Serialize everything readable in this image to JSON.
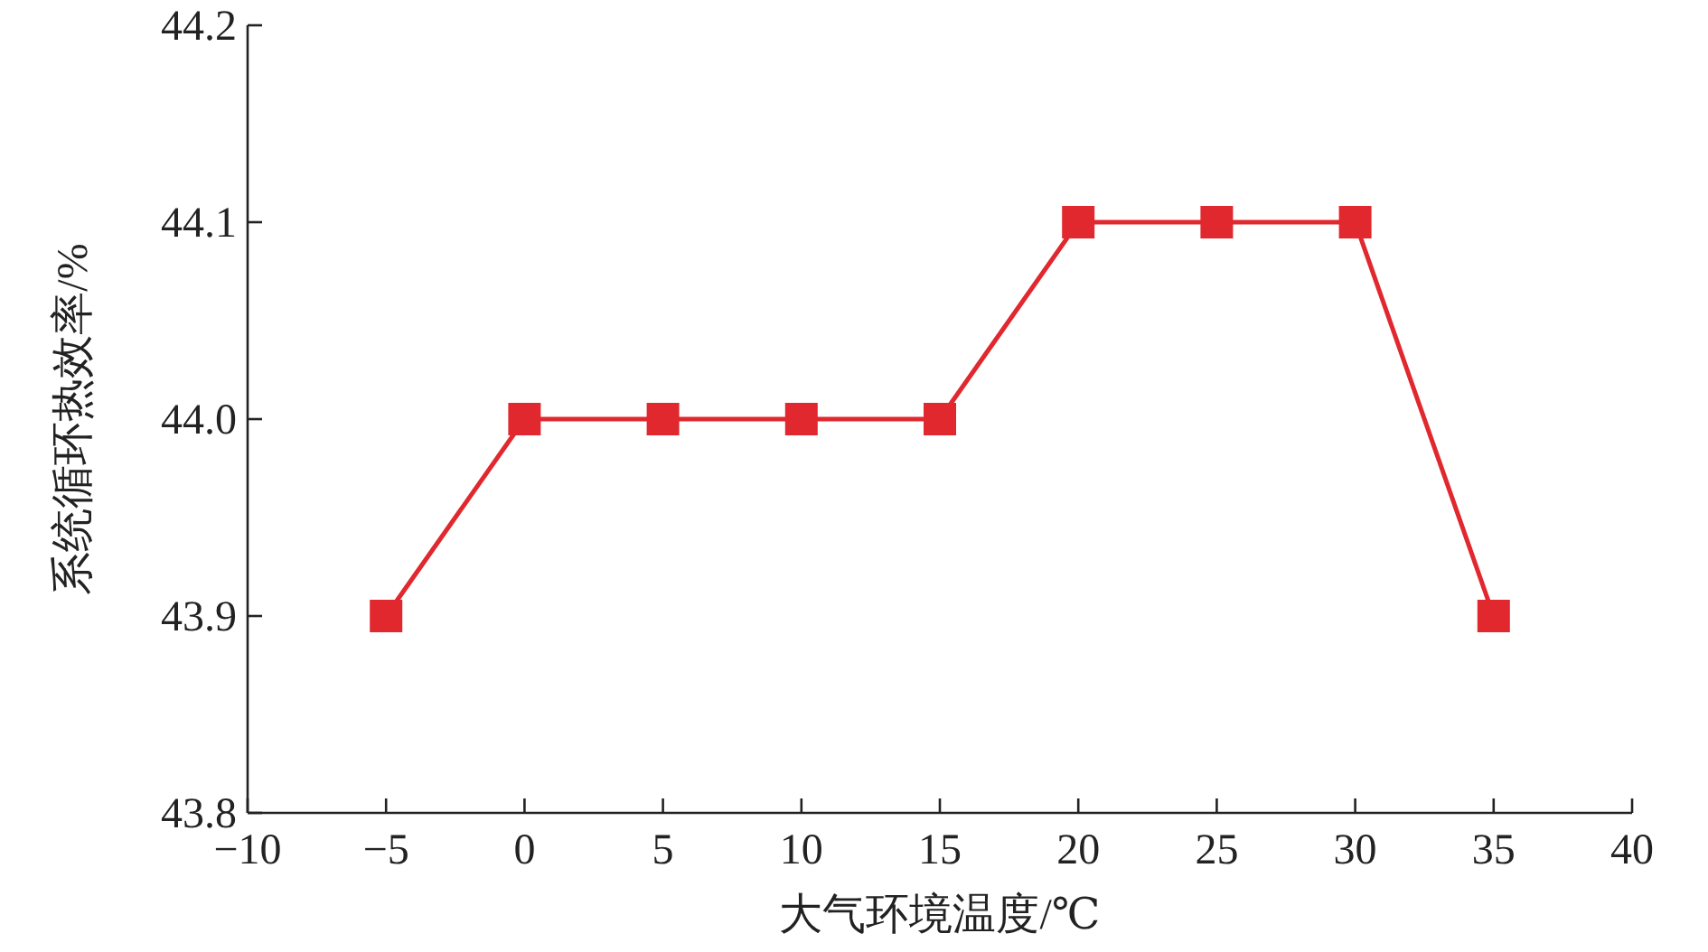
{
  "chart_data": {
    "type": "line",
    "xlabel": "大气环境温度/℃",
    "ylabel": "系统循环热效率/%",
    "x": [
      -5,
      0,
      5,
      10,
      15,
      20,
      25,
      30,
      35
    ],
    "series": [
      {
        "color": "#e0282e",
        "values": [
          43.9,
          44.0,
          44.0,
          44.0,
          44.0,
          44.1,
          44.1,
          44.1,
          43.9
        ]
      }
    ],
    "xlim": [
      -10,
      40
    ],
    "xticks": [
      {
        "value": -10,
        "label": "−10"
      },
      {
        "value": -5,
        "label": "−5"
      },
      0,
      5,
      10,
      15,
      20,
      25,
      30,
      35,
      40
    ],
    "ylim": [
      43.8,
      44.2
    ],
    "yticks": [
      {
        "value": 43.8,
        "label": "43.8"
      },
      {
        "value": 43.9,
        "label": "43.9"
      },
      {
        "value": 44.0,
        "label": "44.0"
      },
      {
        "value": 44.1,
        "label": "44.1"
      },
      {
        "value": 44.2,
        "label": "44.2"
      }
    ],
    "marker": "square",
    "line_style": "solid",
    "grid": false
  }
}
